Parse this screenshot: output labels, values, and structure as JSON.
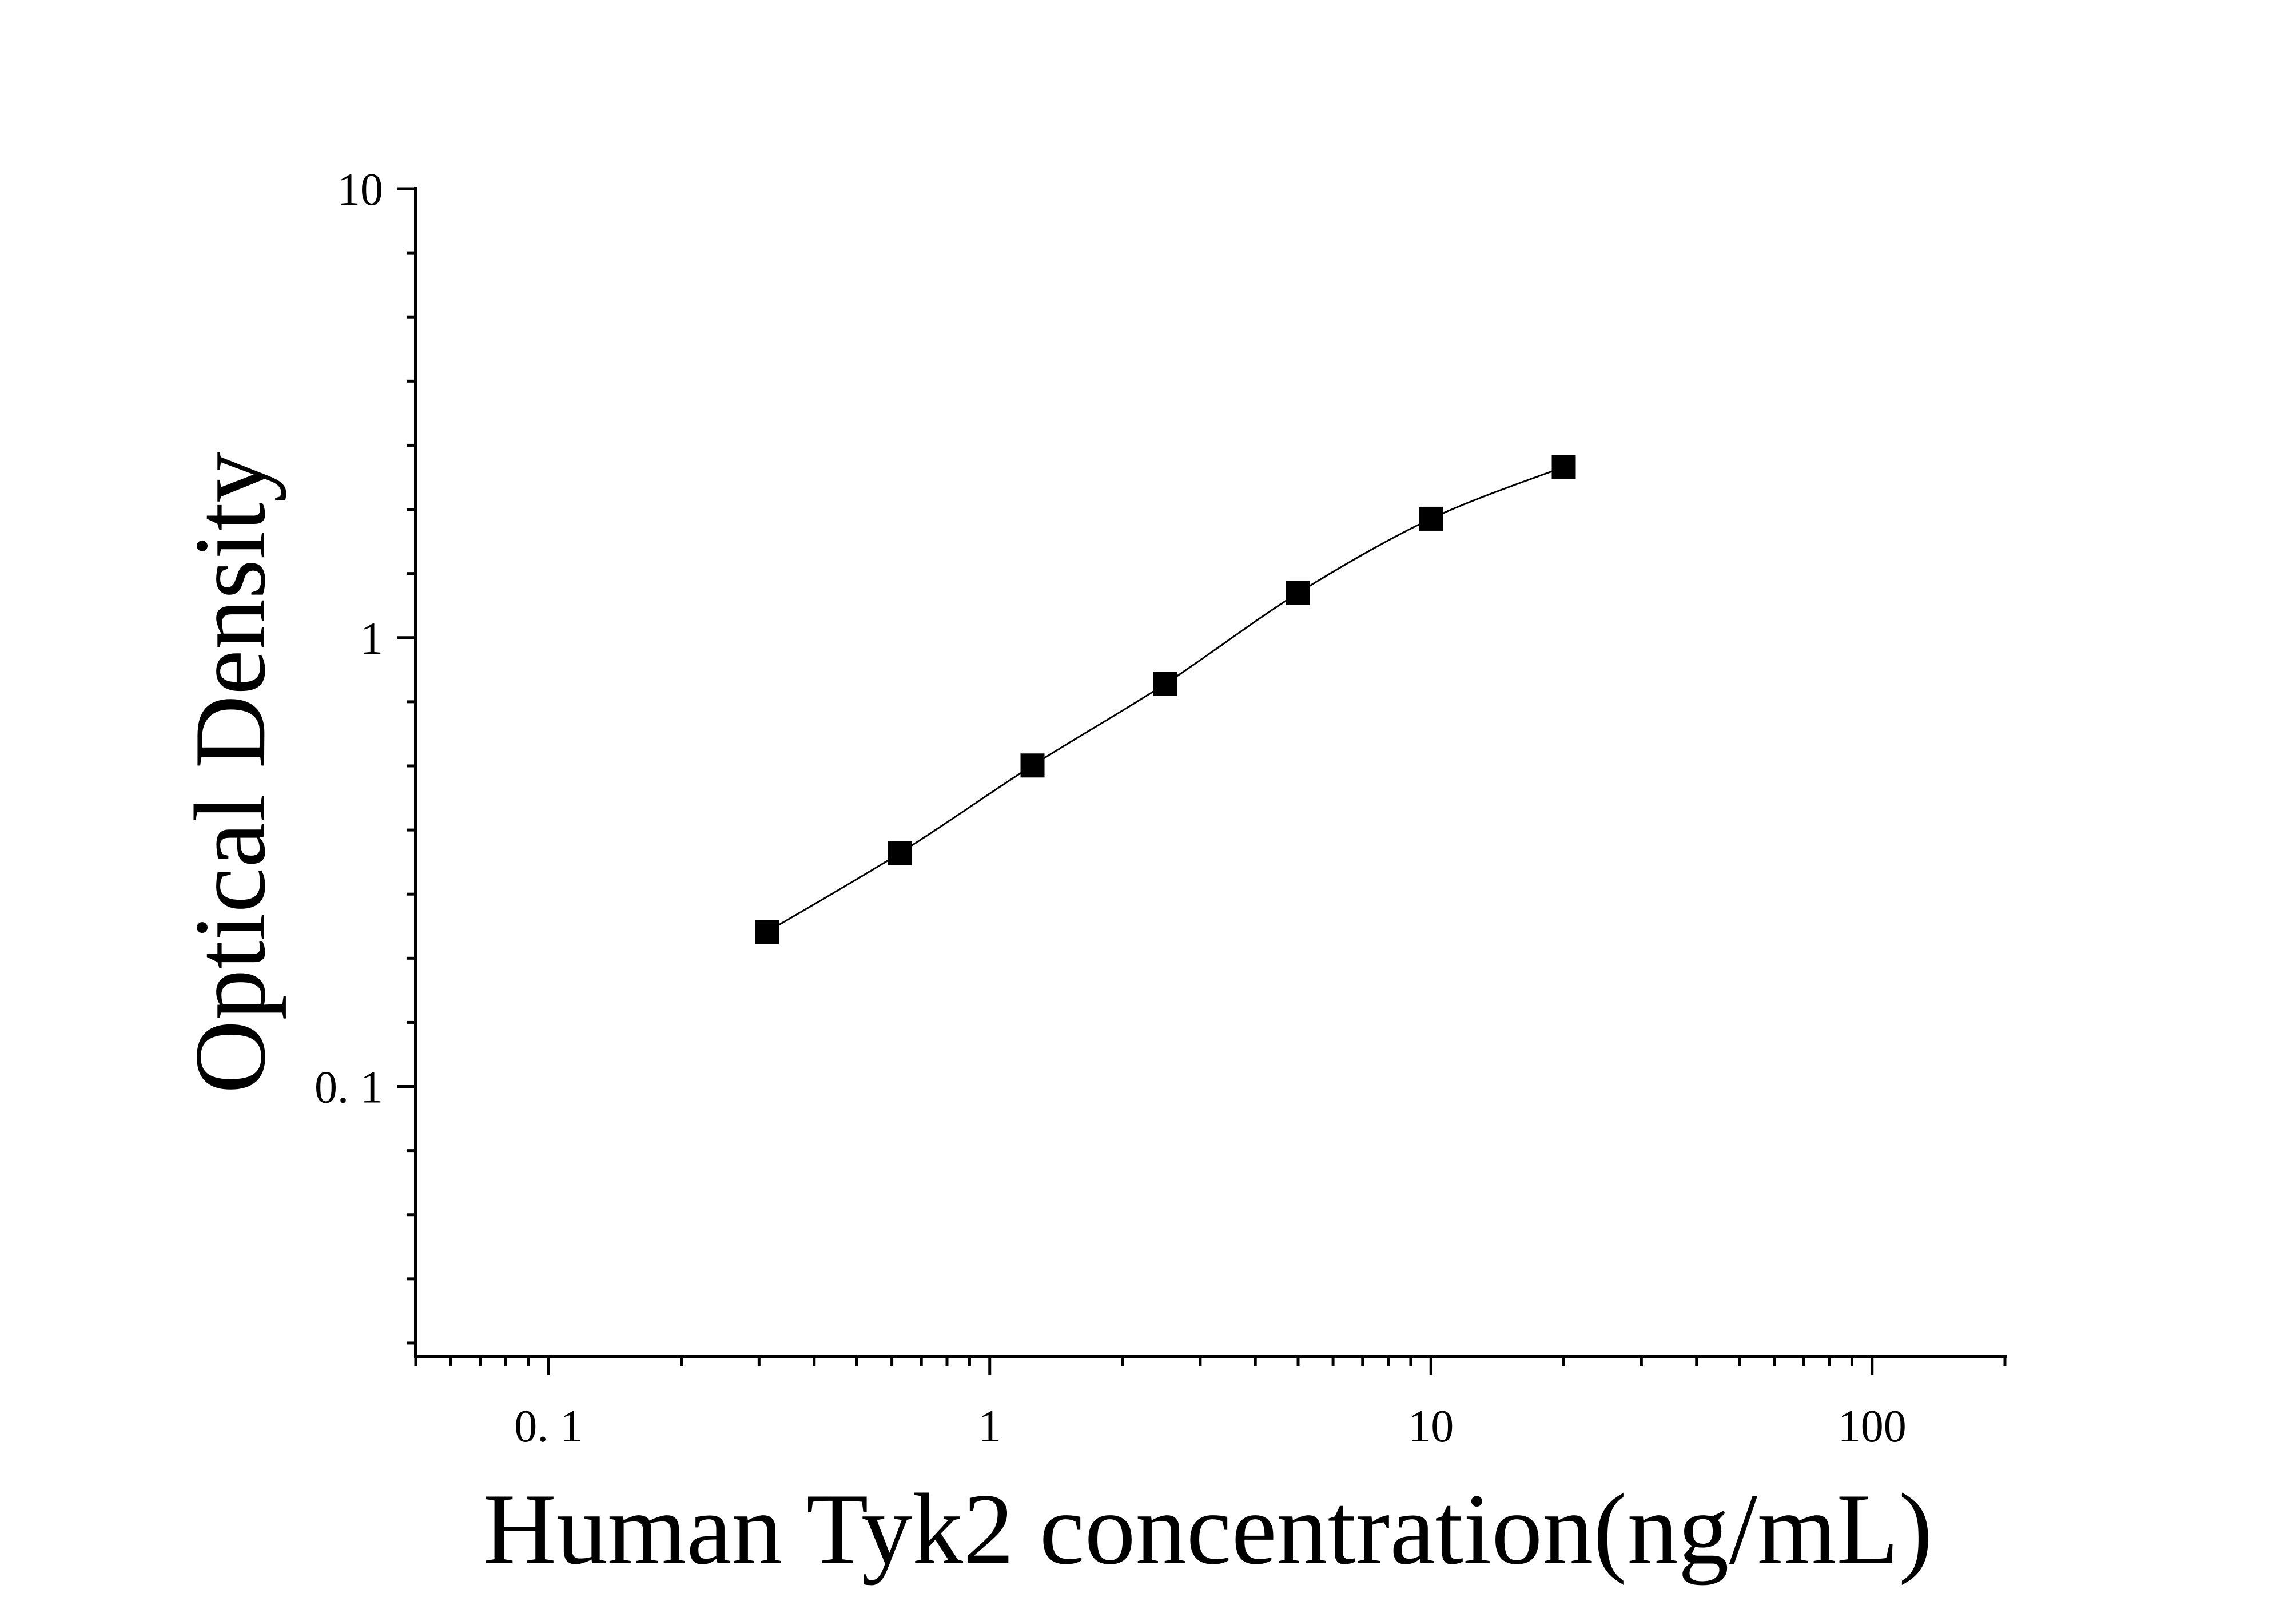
{
  "chart_data": {
    "type": "scatter",
    "xlabel": "Human Tyk2 concentration(ng/mL)",
    "ylabel": "Optical Density",
    "x_scale": "log",
    "y_scale": "log",
    "xlim": [
      0.05,
      200
    ],
    "ylim": [
      0.025,
      10
    ],
    "x_ticks": [
      {
        "value": 0.1,
        "label": "0. 1"
      },
      {
        "value": 1,
        "label": "1"
      },
      {
        "value": 10,
        "label": "10"
      },
      {
        "value": 100,
        "label": "100"
      }
    ],
    "y_ticks": [
      {
        "value": 0.1,
        "label": "0. 1"
      },
      {
        "value": 1,
        "label": "1"
      },
      {
        "value": 10,
        "label": "10"
      }
    ],
    "series": [
      {
        "x": [
          0.3125,
          0.625,
          1.25,
          2.5,
          5,
          10,
          20
        ],
        "y": [
          0.221,
          0.331,
          0.519,
          0.789,
          1.257,
          1.84,
          2.4
        ],
        "color": "#000000",
        "fitted_curve": true
      }
    ],
    "grid": false
  }
}
